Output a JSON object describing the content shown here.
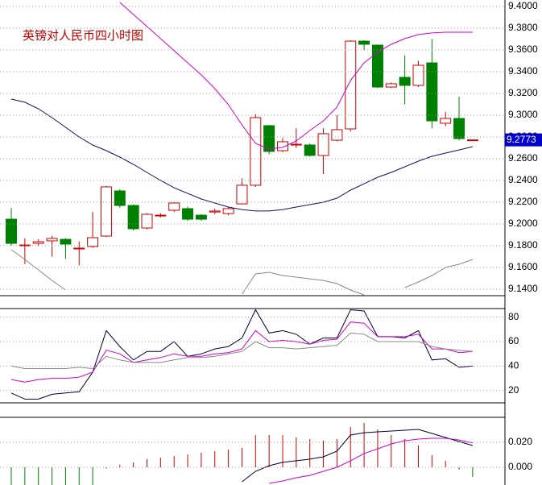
{
  "chart_data": [
    {
      "type": "candlestick",
      "title": "英镑对人民币四小时图",
      "open": [
        9.2044,
        9.1807,
        9.1822,
        9.1845,
        9.1859,
        9.1778,
        9.1793,
        9.1889,
        9.2304,
        9.217,
        9.1963,
        9.2081,
        9.2126,
        9.2141,
        9.2081,
        9.211,
        9.2096,
        9.2185,
        9.2356,
        9.2904,
        9.2674,
        9.2733,
        9.2726,
        9.263,
        9.277,
        9.2874,
        9.3681,
        9.3644,
        9.3259,
        9.3348,
        9.3274,
        9.3481,
        9.2926,
        9.297,
        9.2773
      ],
      "close": [
        9.1822,
        9.1807,
        9.1837,
        9.1867,
        9.1815,
        9.1778,
        9.1874,
        9.2341,
        9.217,
        9.1956,
        9.2089,
        9.2081,
        9.2193,
        9.2044,
        9.2044,
        9.2119,
        9.2141,
        9.2356,
        9.2978,
        9.2667,
        9.2756,
        9.2733,
        9.263,
        9.283,
        9.2867,
        9.3681,
        9.3652,
        9.3259,
        9.3289,
        9.3274,
        9.3459,
        9.2948,
        9.297,
        9.2785,
        9.2773
      ],
      "low": [
        9.18,
        9.163,
        9.18,
        9.17,
        9.168,
        9.162,
        9.178,
        9.188,
        9.215,
        9.194,
        9.195,
        9.206,
        9.211,
        9.203,
        9.203,
        9.209,
        9.208,
        9.218,
        9.234,
        9.264,
        9.266,
        9.27,
        9.262,
        9.246,
        9.276,
        9.285,
        9.36,
        9.325,
        9.325,
        9.31,
        9.326,
        9.288,
        9.29,
        9.277,
        9.2773
      ],
      "high": [
        9.2148,
        9.187,
        9.186,
        9.189,
        9.187,
        9.184,
        9.211,
        9.235,
        9.232,
        9.218,
        9.21,
        9.21,
        9.22,
        9.216,
        9.209,
        9.214,
        9.216,
        9.242,
        9.301,
        9.291,
        9.279,
        9.288,
        9.274,
        9.288,
        9.3,
        9.369,
        9.369,
        9.365,
        9.33,
        9.355,
        9.35,
        9.37,
        9.303,
        9.317,
        9.2773
      ],
      "up_color": "#d00000",
      "down_color": "#008000",
      "series": [
        {
          "color": "#d000d0",
          "values": [
            null,
            null,
            null,
            null,
            null,
            null,
            null,
            null,
            9.4037,
            9.3926,
            9.3815,
            9.3704,
            9.3593,
            9.3481,
            9.337,
            9.3244,
            9.3096,
            9.2911,
            9.2741,
            9.2689,
            9.2704,
            9.2763,
            9.2859,
            9.2948,
            9.3074,
            9.3319,
            9.3481,
            9.3578,
            9.3652,
            9.3704,
            9.3741,
            9.3756,
            9.3763,
            9.3763,
            9.3763
          ]
        },
        {
          "color": "#101060",
          "values": [
            9.3148,
            9.3119,
            9.3059,
            9.2978,
            9.2889,
            9.28,
            9.2726,
            9.2674,
            9.2615,
            9.2548,
            9.2474,
            9.24,
            9.2333,
            9.2281,
            9.223,
            9.2193,
            9.2156,
            9.2133,
            9.2119,
            9.2119,
            9.2133,
            9.2156,
            9.2178,
            9.22,
            9.2237,
            9.2311,
            9.237,
            9.243,
            9.2474,
            9.2526,
            9.2578,
            9.2622,
            9.2652,
            9.2681,
            9.2711
          ]
        },
        {
          "color": "#888888",
          "values": [
            9.1763,
            9.1674,
            9.1578,
            9.1481,
            9.1393,
            null,
            null,
            null,
            null,
            null,
            null,
            null,
            null,
            null,
            null,
            null,
            null,
            9.1356,
            9.1541,
            9.1556,
            9.1526,
            9.1511,
            9.1496,
            9.1481,
            9.1452,
            9.1393,
            9.1348,
            null,
            null,
            9.1415,
            9.1467,
            9.1526,
            9.16,
            9.163,
            9.1674
          ]
        }
      ],
      "last_price": 9.2773,
      "last_price_color": "#0000cc",
      "ylim": [
        9.1341,
        9.4059
      ],
      "yticks": [
        {
          "value": 9.4,
          "label": "9.4000"
        },
        {
          "value": 9.38,
          "label": "9.3800"
        },
        {
          "value": 9.36,
          "label": "9.3600"
        },
        {
          "value": 9.34,
          "label": "9.3400"
        },
        {
          "value": 9.32,
          "label": "9.3200"
        },
        {
          "value": 9.3,
          "label": "9.3000"
        },
        {
          "value": 9.28,
          "label": "9.2800"
        },
        {
          "value": 9.26,
          "label": "9.2600"
        },
        {
          "value": 9.24,
          "label": "9.2400"
        },
        {
          "value": 9.22,
          "label": "9.2200"
        },
        {
          "value": 9.2,
          "label": "9.2000"
        },
        {
          "value": 9.18,
          "label": "9.1800"
        },
        {
          "value": 9.16,
          "label": "9.1600"
        },
        {
          "value": 9.14,
          "label": "9.1400"
        }
      ],
      "grid": true
    },
    {
      "type": "line",
      "series": [
        {
          "color": "#000033",
          "values": [
            18,
            13,
            13,
            17,
            18,
            19,
            35,
            69,
            56,
            45,
            52,
            52,
            60,
            48,
            50,
            54,
            56,
            63,
            86,
            67,
            69,
            66,
            58,
            63,
            63,
            86,
            85,
            64,
            64,
            63,
            69,
            45,
            46,
            39,
            40
          ]
        },
        {
          "color": "#d000d0",
          "values": [
            29,
            27,
            29,
            30,
            30,
            31,
            35,
            53,
            50,
            43,
            45,
            47,
            50,
            48,
            48,
            50,
            51,
            54,
            69,
            60,
            61,
            60,
            58,
            61,
            62,
            76,
            75,
            64,
            64,
            64,
            66,
            54,
            54,
            51,
            52
          ]
        },
        {
          "color": "#888888",
          "values": [
            40,
            38,
            38,
            38,
            38,
            39,
            38,
            48,
            45,
            43,
            43,
            43,
            45,
            47,
            47,
            48,
            50,
            52,
            60,
            55,
            55,
            54,
            55,
            56,
            57,
            67,
            66,
            60,
            60,
            60,
            60,
            56,
            54,
            53,
            52
          ]
        }
      ],
      "ylim": [
        10,
        87
      ],
      "yticks": [
        20,
        40,
        60,
        80
      ],
      "grid": true
    },
    {
      "type": "bar",
      "values": [
        -0.016,
        -0.016,
        -0.016,
        -0.016,
        -0.016,
        -0.016,
        -0.016,
        -0.001,
        0.002,
        0.0039,
        0.0065,
        0.0077,
        0.009,
        0.0103,
        0.0116,
        0.0129,
        0.0142,
        0.0155,
        0.0258,
        0.0258,
        0.0258,
        0.0239,
        0.0226,
        0.0213,
        0.0226,
        0.0323,
        0.0355,
        0.0303,
        0.0258,
        0.0226,
        0.0174,
        0.0097,
        0.0052,
        -0.0019,
        -0.0077
      ],
      "up_color": "#d00000",
      "down_color": "#008000",
      "series": [
        {
          "color": "#000033",
          "values": [
            null,
            null,
            null,
            null,
            null,
            null,
            null,
            null,
            null,
            null,
            null,
            null,
            null,
            null,
            null,
            null,
            null,
            -0.0116,
            -0.0032,
            0.0013,
            0.0039,
            0.0052,
            0.0065,
            0.0084,
            0.0129,
            0.0258,
            0.0277,
            0.0284,
            0.029,
            0.0297,
            0.0303,
            0.0271,
            0.0239,
            0.0206,
            0.0174
          ]
        },
        {
          "color": "#d000d0",
          "values": [
            null,
            null,
            null,
            null,
            null,
            null,
            null,
            null,
            null,
            null,
            null,
            null,
            null,
            null,
            null,
            null,
            null,
            null,
            null,
            -0.0129,
            -0.011,
            -0.0084,
            -0.0065,
            -0.0032,
            0,
            0.0052,
            0.011,
            0.0148,
            0.0187,
            0.0213,
            0.0226,
            0.0232,
            0.0232,
            0.0219,
            0.0194
          ]
        }
      ],
      "ylim": [
        -0.0142,
        0.04
      ],
      "yticks": [
        {
          "value": 0.02,
          "label": "0.020"
        },
        {
          "value": 0,
          "label": "0.000"
        }
      ],
      "grid": true
    }
  ]
}
